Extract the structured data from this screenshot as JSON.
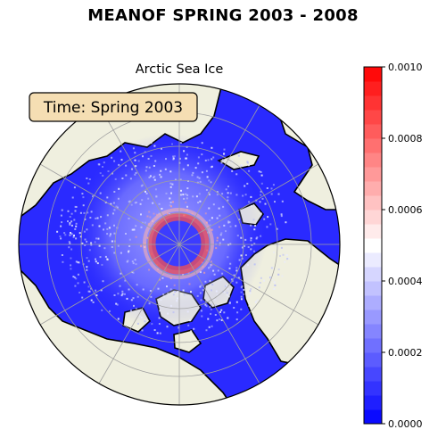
{
  "chart_data": {
    "type": "heatmap",
    "title": "MEANOF SPRING 2003 - 2008",
    "subtitle": "Arctic Sea Ice",
    "projection": "north-polar-stereographic",
    "time_label": "Time: Spring 2003",
    "colorbar": {
      "min": 0.0,
      "max": 0.001,
      "ticks": [
        "0.0000",
        "0.0002",
        "0.0004",
        "0.0006",
        "0.0008",
        "0.0010"
      ],
      "colormap": "bwr",
      "levels": 25
    },
    "colors": {
      "ocean_low": "#2a2aff",
      "land": "#efefdf",
      "high": "#ff0000",
      "mid": "#ffffff",
      "low": "#0000ff",
      "grid": "#a0a0a0"
    }
  }
}
